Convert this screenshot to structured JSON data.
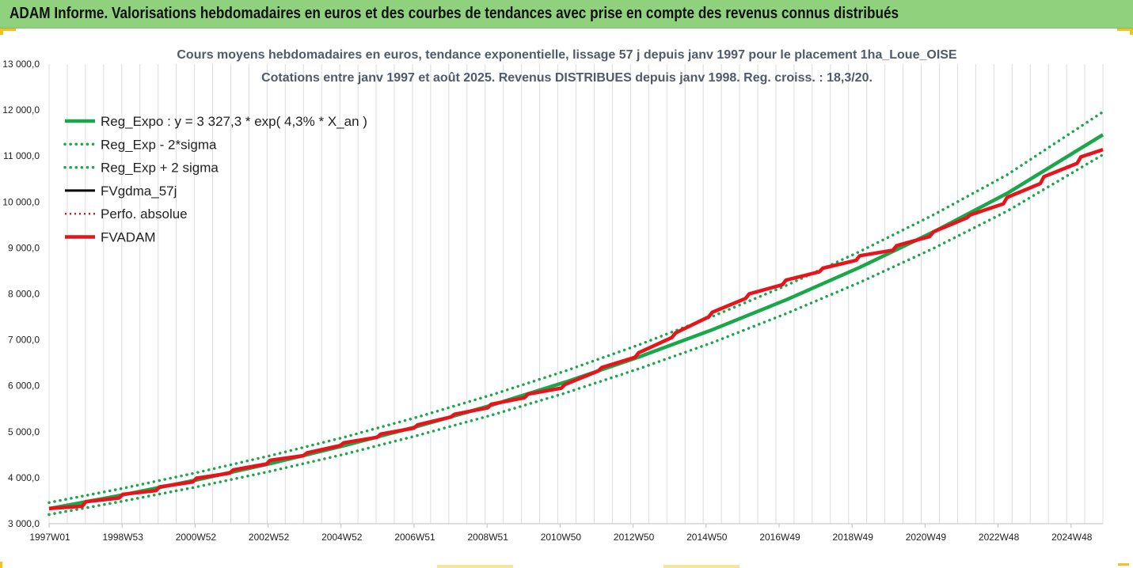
{
  "header": {
    "title": "ADAM Informe. Valorisations hebdomadaires en euros et des courbes de tendances avec prise en compte des revenus connus distribués",
    "background": "#8fd17d"
  },
  "chart_data": {
    "type": "line",
    "title": "Cours moyens hebdomadaires en euros, tendance exponentielle, lissage 57 j depuis janv 1997 pour le placement 1ha_Loue_OISE",
    "subtitle": "Cotations entre janv 1997 et août 2025. Revenus DISTRIBUES depuis janv 1998. Reg. croiss. : 18,3/20.",
    "xlabel": "",
    "ylabel": "",
    "ylim": [
      3000,
      13000
    ],
    "yticks": [
      "3 000,0",
      "4 000,0",
      "5 000,0",
      "6 000,0",
      "7 000,0",
      "8 000,0",
      "9 000,0",
      "10 000,0",
      "11 000,0",
      "12 000,0",
      "13 000,0"
    ],
    "x_tick_labels": [
      "1997W01",
      "1998W53",
      "2000W52",
      "2002W52",
      "2004W52",
      "2006W51",
      "2008W51",
      "2010W50",
      "2012W50",
      "2014W50",
      "2016W49",
      "2018W49",
      "2020W49",
      "2022W48",
      "2024W48"
    ],
    "x_range_years": [
      1997.0,
      2025.6
    ],
    "grid": "vertical",
    "legend_position": "top-left",
    "series": [
      {
        "name": "Reg_Expo : y = 3 327,3 * exp( 4,3% *  X_an )",
        "color": "#1aa64a",
        "style": "solid",
        "x": [
          1997,
          1999,
          2001,
          2003,
          2005,
          2007,
          2009,
          2011,
          2013,
          2015,
          2017,
          2019,
          2021,
          2023,
          2025.6
        ],
        "values": [
          3327,
          3626,
          3952,
          4308,
          4695,
          5117,
          5577,
          6078,
          6625,
          7220,
          7869,
          8577,
          9348,
          10188,
          11463
        ]
      },
      {
        "name": "Reg_Exp - 2*sigma",
        "color": "#1aa64a",
        "style": "dotted",
        "x": [
          1997,
          1999,
          2001,
          2003,
          2005,
          2007,
          2009,
          2011,
          2013,
          2015,
          2017,
          2019,
          2021,
          2023,
          2025.6
        ],
        "values": [
          3200,
          3490,
          3800,
          4140,
          4510,
          4920,
          5360,
          5840,
          6370,
          6940,
          7570,
          8250,
          8990,
          9800,
          11030
        ]
      },
      {
        "name": "Reg_Exp + 2 sigma",
        "color": "#1aa64a",
        "style": "dotted",
        "x": [
          1997,
          1999,
          2001,
          2003,
          2005,
          2007,
          2009,
          2011,
          2013,
          2015,
          2017,
          2019,
          2021,
          2023,
          2025.6
        ],
        "values": [
          3460,
          3770,
          4110,
          4480,
          4880,
          5320,
          5800,
          6320,
          6890,
          7510,
          8180,
          8920,
          9720,
          10590,
          11960
        ]
      },
      {
        "name": "FVgdma_57j",
        "color": "#000000",
        "style": "solid",
        "x": [
          1997,
          1997.9,
          1998.0,
          1998.9,
          1999.0,
          1999.9,
          2000.0,
          2000.9,
          2001.0,
          2001.9,
          2002.0,
          2002.9,
          2003.0,
          2003.9,
          2004.0,
          2004.9,
          2005.0,
          2005.9,
          2006.0,
          2006.9,
          2007.0,
          2007.9,
          2008.0,
          2008.9,
          2009.0,
          2009.9,
          2010.0,
          2010.9,
          2011.0,
          2011.9,
          2012.0,
          2012.9,
          2013.0,
          2013.9,
          2014.0,
          2014.9,
          2015.0,
          2015.9,
          2016.0,
          2016.9,
          2017.0,
          2017.9,
          2018.0,
          2018.9,
          2019.0,
          2019.9,
          2020.0,
          2020.9,
          2021.0,
          2021.9,
          2022.0,
          2022.9,
          2023.0,
          2023.9,
          2024.0,
          2024.9,
          2025.0,
          2025.6
        ],
        "values": [
          3330,
          3380,
          3480,
          3560,
          3640,
          3720,
          3800,
          3910,
          3990,
          4100,
          4170,
          4300,
          4380,
          4480,
          4540,
          4700,
          4760,
          4880,
          4950,
          5080,
          5150,
          5320,
          5380,
          5520,
          5600,
          5740,
          5820,
          5950,
          6030,
          6320,
          6400,
          6620,
          6720,
          7050,
          7150,
          7500,
          7600,
          7900,
          8000,
          8200,
          8300,
          8480,
          8560,
          8730,
          8830,
          8950,
          9050,
          9250,
          9350,
          9650,
          9720,
          9960,
          10100,
          10400,
          10550,
          10840,
          10980,
          11140
        ]
      },
      {
        "name": "Perfo. absolue",
        "color": "#e8141b",
        "style": "dotted",
        "x": [
          1997,
          1997.9,
          1998.0,
          1998.9,
          1999.0,
          1999.9,
          2000.0,
          2000.9,
          2001.0,
          2001.9,
          2002.0,
          2002.9,
          2003.0,
          2003.9,
          2004.0,
          2004.9,
          2005.0,
          2005.9,
          2006.0,
          2006.9,
          2007.0,
          2007.9,
          2008.0,
          2008.9,
          2009.0,
          2009.9,
          2010.0,
          2010.9,
          2011.0,
          2011.9,
          2012.0,
          2012.9,
          2013.0,
          2013.9,
          2014.0,
          2014.9,
          2015.0,
          2015.9,
          2016.0,
          2016.9,
          2017.0,
          2017.9,
          2018.0,
          2018.9,
          2019.0,
          2019.9,
          2020.0,
          2020.9,
          2021.0,
          2021.9,
          2022.0,
          2022.9,
          2023.0,
          2023.9,
          2024.0,
          2024.9,
          2025.0,
          2025.6
        ],
        "values": [
          3330,
          3380,
          3480,
          3560,
          3640,
          3720,
          3800,
          3910,
          3990,
          4100,
          4170,
          4300,
          4380,
          4480,
          4540,
          4700,
          4760,
          4880,
          4950,
          5080,
          5150,
          5320,
          5380,
          5520,
          5600,
          5740,
          5820,
          5950,
          6030,
          6320,
          6400,
          6620,
          6720,
          7050,
          7150,
          7500,
          7600,
          7900,
          8000,
          8200,
          8300,
          8480,
          8560,
          8730,
          8830,
          8950,
          9050,
          9250,
          9350,
          9650,
          9720,
          9960,
          10100,
          10400,
          10550,
          10840,
          10980,
          11140
        ]
      },
      {
        "name": "FVADAM",
        "color": "#e8141b",
        "style": "solid",
        "x": [
          1997,
          1997.9,
          1998.0,
          1998.9,
          1999.0,
          1999.9,
          2000.0,
          2000.9,
          2001.0,
          2001.9,
          2002.0,
          2002.9,
          2003.0,
          2003.9,
          2004.0,
          2004.9,
          2005.0,
          2005.9,
          2006.0,
          2006.9,
          2007.0,
          2007.9,
          2008.0,
          2008.9,
          2009.0,
          2009.9,
          2010.0,
          2010.9,
          2011.0,
          2011.9,
          2012.0,
          2012.9,
          2013.0,
          2013.9,
          2014.0,
          2014.9,
          2015.0,
          2015.9,
          2016.0,
          2016.9,
          2017.0,
          2017.9,
          2018.0,
          2018.9,
          2019.0,
          2019.9,
          2020.0,
          2020.9,
          2021.0,
          2021.9,
          2022.0,
          2022.9,
          2023.0,
          2023.9,
          2024.0,
          2024.9,
          2025.0,
          2025.6
        ],
        "values": [
          3330,
          3380,
          3480,
          3560,
          3640,
          3720,
          3800,
          3910,
          3990,
          4100,
          4170,
          4300,
          4380,
          4480,
          4540,
          4700,
          4760,
          4880,
          4950,
          5080,
          5150,
          5320,
          5380,
          5520,
          5600,
          5740,
          5820,
          5950,
          6030,
          6320,
          6400,
          6620,
          6720,
          7050,
          7150,
          7500,
          7600,
          7900,
          8000,
          8200,
          8300,
          8480,
          8560,
          8730,
          8830,
          8950,
          9050,
          9250,
          9350,
          9650,
          9720,
          9960,
          10100,
          10400,
          10550,
          10840,
          10980,
          11140
        ]
      }
    ]
  }
}
